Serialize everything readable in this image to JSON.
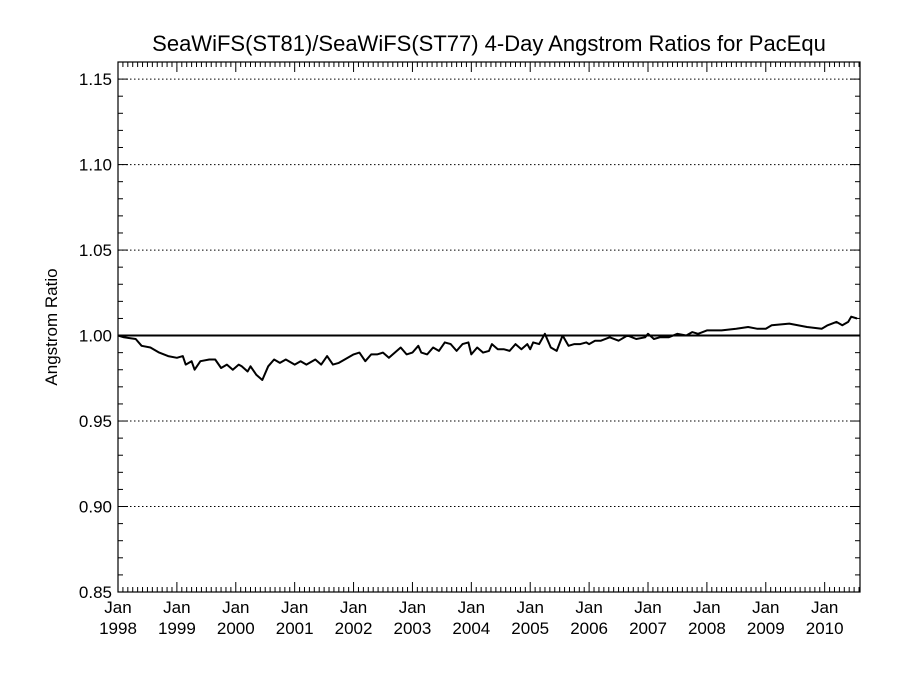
{
  "chart_data": {
    "type": "line",
    "title": "SeaWiFS(ST81)/SeaWiFS(ST77) 4-Day Angstrom Ratios for PacEqu",
    "xlabel": "",
    "ylabel": "Angstrom Ratio",
    "xlim": [
      1998.0,
      2010.6
    ],
    "ylim": [
      0.85,
      1.16
    ],
    "yticks": [
      0.85,
      0.9,
      0.95,
      1.0,
      1.05,
      1.1,
      1.15
    ],
    "ytick_labels": [
      "0.85",
      "0.90",
      "0.95",
      "1.00",
      "1.05",
      "1.10",
      "1.15"
    ],
    "xticks": [
      1998,
      1999,
      2000,
      2001,
      2002,
      2003,
      2004,
      2005,
      2006,
      2007,
      2008,
      2009,
      2010
    ],
    "xtick_labels": [
      [
        "Jan",
        "1998"
      ],
      [
        "Jan",
        "1999"
      ],
      [
        "Jan",
        "2000"
      ],
      [
        "Jan",
        "2001"
      ],
      [
        "Jan",
        "2002"
      ],
      [
        "Jan",
        "2003"
      ],
      [
        "Jan",
        "2004"
      ],
      [
        "Jan",
        "2005"
      ],
      [
        "Jan",
        "2006"
      ],
      [
        "Jan",
        "2007"
      ],
      [
        "Jan",
        "2008"
      ],
      [
        "Jan",
        "2009"
      ],
      [
        "Jan",
        "2010"
      ]
    ],
    "grid": "dotted horizontal at major y ticks",
    "reference_line": 1.0,
    "series": [
      {
        "x": [
          1998.0,
          1998.1,
          1998.3,
          1998.4,
          1998.55,
          1998.7,
          1998.85,
          1999.0,
          1999.1,
          1999.15,
          1999.25,
          1999.3,
          1999.4,
          1999.55,
          1999.65,
          1999.75,
          1999.85,
          1999.95,
          2000.05,
          2000.1,
          2000.2,
          2000.25,
          2000.35,
          2000.45,
          2000.55,
          2000.65,
          2000.75,
          2000.85,
          2001.0,
          2001.1,
          2001.2,
          2001.35,
          2001.45,
          2001.55,
          2001.65,
          2001.75,
          2001.85,
          2002.0,
          2002.1,
          2002.2,
          2002.3,
          2002.4,
          2002.5,
          2002.6,
          2002.7,
          2002.8,
          2002.9,
          2003.0,
          2003.1,
          2003.15,
          2003.25,
          2003.35,
          2003.45,
          2003.55,
          2003.65,
          2003.75,
          2003.85,
          2003.95,
          2004.0,
          2004.1,
          2004.2,
          2004.3,
          2004.35,
          2004.45,
          2004.55,
          2004.65,
          2004.75,
          2004.85,
          2004.95,
          2005.0,
          2005.05,
          2005.15,
          2005.25,
          2005.35,
          2005.45,
          2005.55,
          2005.65,
          2005.75,
          2005.85,
          2005.95,
          2006.0,
          2006.1,
          2006.2,
          2006.35,
          2006.5,
          2006.65,
          2006.8,
          2006.95,
          2007.0,
          2007.1,
          2007.2,
          2007.35,
          2007.5,
          2007.65,
          2007.75,
          2007.85,
          2008.0,
          2008.25,
          2008.5,
          2008.7,
          2008.85,
          2008.95,
          2009.0,
          2009.1,
          2009.4,
          2009.7,
          2009.95,
          2010.0,
          2010.05,
          2010.2,
          2010.3,
          2010.4,
          2010.45,
          2010.55
        ],
        "y": [
          1.0,
          0.999,
          0.998,
          0.994,
          0.993,
          0.99,
          0.988,
          0.987,
          0.988,
          0.983,
          0.985,
          0.98,
          0.985,
          0.986,
          0.986,
          0.981,
          0.983,
          0.98,
          0.983,
          0.982,
          0.979,
          0.982,
          0.977,
          0.974,
          0.982,
          0.986,
          0.984,
          0.986,
          0.983,
          0.985,
          0.983,
          0.986,
          0.983,
          0.988,
          0.983,
          0.984,
          0.986,
          0.989,
          0.99,
          0.985,
          0.989,
          0.989,
          0.99,
          0.987,
          0.99,
          0.993,
          0.989,
          0.99,
          0.994,
          0.99,
          0.989,
          0.993,
          0.991,
          0.996,
          0.995,
          0.991,
          0.995,
          0.996,
          0.989,
          0.993,
          0.99,
          0.991,
          0.995,
          0.992,
          0.992,
          0.991,
          0.995,
          0.992,
          0.995,
          0.992,
          0.996,
          0.995,
          1.001,
          0.993,
          0.991,
          1.0,
          0.994,
          0.995,
          0.995,
          0.996,
          0.995,
          0.997,
          0.997,
          0.999,
          0.997,
          1.0,
          0.998,
          0.999,
          1.001,
          0.998,
          0.999,
          0.999,
          1.001,
          1.0,
          1.002,
          1.001,
          1.003,
          1.003,
          1.004,
          1.005,
          1.004,
          1.004,
          1.004,
          1.006,
          1.007,
          1.005,
          1.004,
          1.005,
          1.006,
          1.008,
          1.006,
          1.008,
          1.011,
          1.01
        ]
      }
    ]
  }
}
